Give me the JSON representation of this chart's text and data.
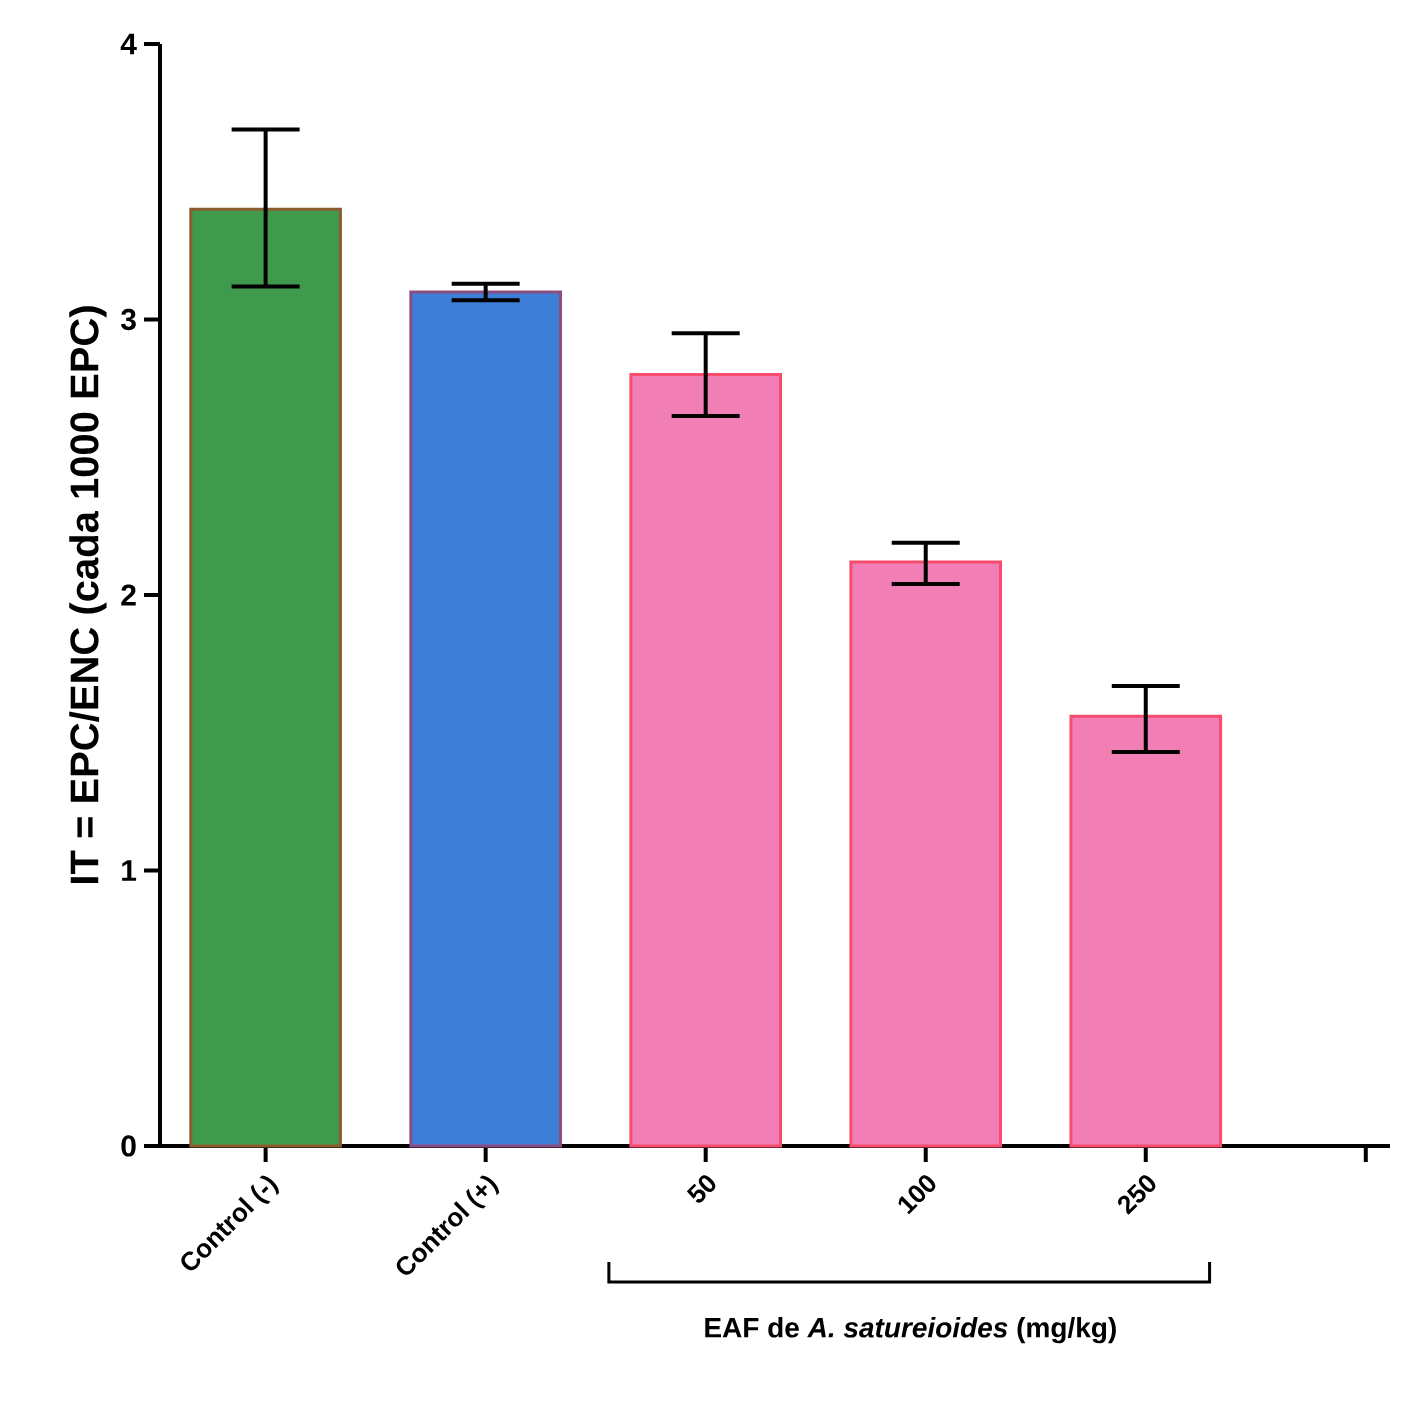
{
  "chart_data": {
    "type": "bar",
    "ylabel": "IT = EPC/ENC (cada 1000 EPC)",
    "categories": [
      "Control (-)",
      "Control (+)",
      "50",
      "100",
      "250",
      null
    ],
    "values": [
      3.4,
      3.1,
      2.8,
      2.12,
      1.56,
      null
    ],
    "errors": [
      [
        3.12,
        3.69
      ],
      [
        3.07,
        3.13
      ],
      [
        2.65,
        2.95
      ],
      [
        2.04,
        2.19
      ],
      [
        1.43,
        1.67
      ],
      null
    ],
    "colors": [
      "#3f9a4e",
      "#3d7fd6",
      "#f27eb6",
      "#f27eb6",
      "#f27eb6",
      "#f27eb6"
    ],
    "ylim": [
      0,
      4
    ],
    "yticks": [
      0,
      1,
      2,
      3,
      4
    ],
    "grid": false,
    "annotations": [
      "EAF de *A. satureioides* (mg/kg)"
    ]
  }
}
